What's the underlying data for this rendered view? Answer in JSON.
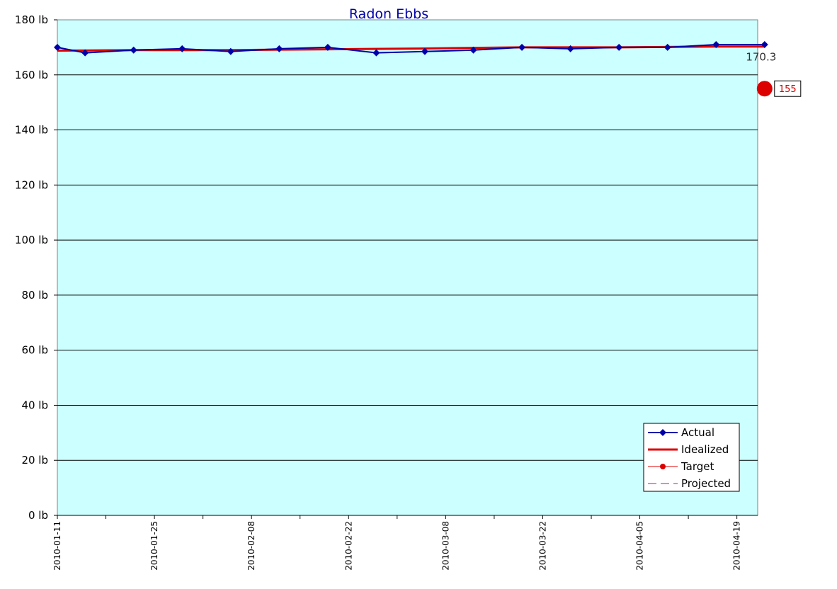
{
  "chart_data": {
    "type": "line",
    "title": "Radon Ebbs",
    "xlabel": "",
    "ylabel": "",
    "ylim": [
      0,
      180
    ],
    "xlim": [
      "2010-01-11",
      "2010-04-22"
    ],
    "y_ticks": [
      "0 lb",
      "20 lb",
      "40 lb",
      "60 lb",
      "80 lb",
      "100 lb",
      "120 lb",
      "140 lb",
      "160 lb",
      "180 lb"
    ],
    "x_ticks": [
      "2010-01-11",
      "2010-01-25",
      "2010-02-08",
      "2010-02-22",
      "2010-03-08",
      "2010-03-22",
      "2010-04-05",
      "2010-04-19"
    ],
    "grid": true,
    "legend_position": "bottom-right",
    "background": "#ccffff",
    "series": [
      {
        "name": "Actual",
        "color": "#0000aa",
        "marker": "diamond",
        "points": [
          {
            "x": "2010-01-11",
            "y": 170
          },
          {
            "x": "2010-01-15",
            "y": 168
          },
          {
            "x": "2010-01-22",
            "y": 169
          },
          {
            "x": "2010-01-29",
            "y": 169.5
          },
          {
            "x": "2010-02-05",
            "y": 168.5
          },
          {
            "x": "2010-02-12",
            "y": 169.5
          },
          {
            "x": "2010-02-19",
            "y": 170
          },
          {
            "x": "2010-02-26",
            "y": 168
          },
          {
            "x": "2010-03-05",
            "y": 168.5
          },
          {
            "x": "2010-03-12",
            "y": 169
          },
          {
            "x": "2010-03-19",
            "y": 170
          },
          {
            "x": "2010-03-26",
            "y": 169.5
          },
          {
            "x": "2010-04-02",
            "y": 170
          },
          {
            "x": "2010-04-09",
            "y": 170
          },
          {
            "x": "2010-04-16",
            "y": 171
          },
          {
            "x": "2010-04-23",
            "y": 171
          }
        ]
      },
      {
        "name": "Idealized",
        "color": "#dd0000",
        "points": [
          {
            "x": "2010-01-11",
            "y": 168.8
          },
          {
            "x": "2010-01-22",
            "y": 169
          },
          {
            "x": "2010-02-05",
            "y": 169
          },
          {
            "x": "2010-02-19",
            "y": 169.3
          },
          {
            "x": "2010-03-05",
            "y": 169.6
          },
          {
            "x": "2010-03-19",
            "y": 170
          },
          {
            "x": "2010-04-02",
            "y": 170
          },
          {
            "x": "2010-04-16",
            "y": 170.3
          },
          {
            "x": "2010-04-23",
            "y": 170.3
          }
        ]
      },
      {
        "name": "Target",
        "color": "#dd0000",
        "marker": "circle",
        "points": [
          {
            "x": "2010-04-23",
            "y": 155
          }
        ]
      },
      {
        "name": "Projected",
        "color": "#cc00cc",
        "dashed": true,
        "points": []
      }
    ],
    "annotations": [
      {
        "text": "170.3",
        "x": "2010-04-23",
        "y": 170.3
      },
      {
        "text": "155",
        "x": "2010-04-23",
        "y": 155,
        "boxed": true
      }
    ]
  }
}
